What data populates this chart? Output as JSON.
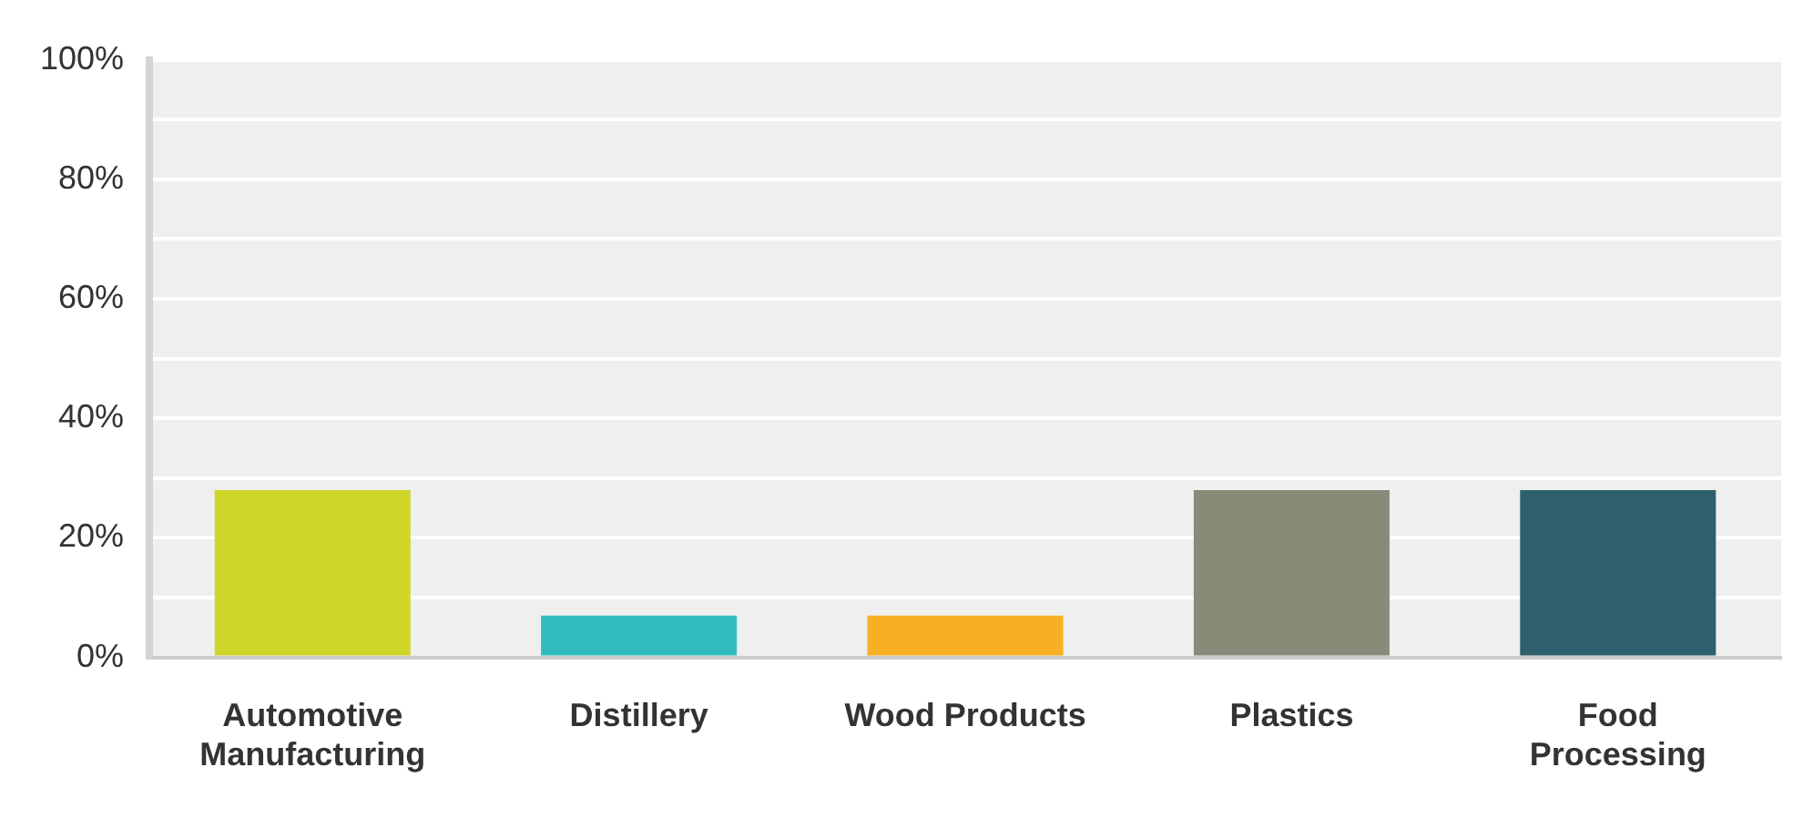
{
  "chart_data": {
    "type": "bar",
    "categories": [
      "Automotive Manufacturing",
      "Distillery",
      "Wood Products",
      "Plastics",
      "Food Processing"
    ],
    "values": [
      28,
      7,
      7,
      28,
      28
    ],
    "colors": [
      "#d0d52a",
      "#33bcbe",
      "#f6b021",
      "#8a8a78",
      "#2e606d"
    ],
    "ylim": [
      0,
      100
    ],
    "yticks": [
      {
        "value": 0,
        "label": "0%"
      },
      {
        "value": 10,
        "label": null
      },
      {
        "value": 20,
        "label": "20%"
      },
      {
        "value": 30,
        "label": null
      },
      {
        "value": 40,
        "label": "40%"
      },
      {
        "value": 50,
        "label": null
      },
      {
        "value": 60,
        "label": "60%"
      },
      {
        "value": 70,
        "label": null
      },
      {
        "value": 80,
        "label": "80%"
      },
      {
        "value": 90,
        "label": null
      },
      {
        "value": 100,
        "label": "100%"
      }
    ],
    "grid": "y",
    "legend": false
  }
}
